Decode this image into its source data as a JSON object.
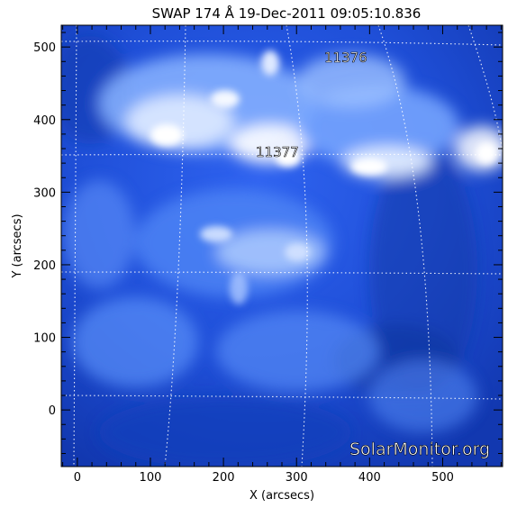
{
  "figure": {
    "title": "SWAP 174 Å 19-Dec-2011 09:05:10.836",
    "xlabel": "X (arcsecs)",
    "ylabel": "Y (arcsecs)",
    "watermark": "SolarMonitor.org",
    "x_tick_labels": [
      "0",
      "100",
      "200",
      "300",
      "400",
      "500"
    ],
    "y_tick_labels": [
      "0",
      "100",
      "200",
      "300",
      "400",
      "500"
    ],
    "x_range": [
      -22,
      582
    ],
    "y_range": [
      -78,
      530
    ],
    "colormap": [
      "#0a1e6e",
      "#1a45d2",
      "#2f63f0",
      "#6fa1ff",
      "#ffffff"
    ]
  },
  "regions": [
    {
      "label": "11376",
      "x": 340,
      "y": 482
    },
    {
      "label": "11377",
      "x": 272,
      "y": 353
    }
  ]
}
